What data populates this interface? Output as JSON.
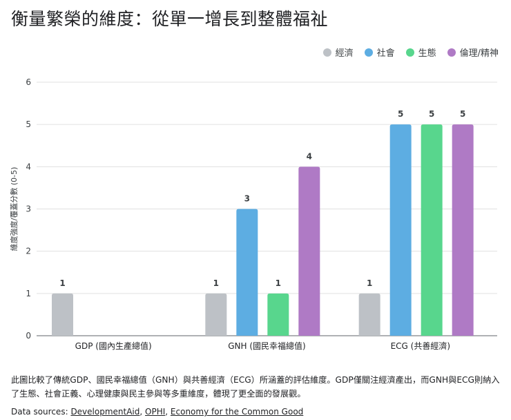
{
  "title": "衡量繁榮的維度：從單一增長到整體福祉",
  "chart_data": {
    "type": "bar",
    "categories": [
      "GDP (國內生產總值)",
      "GNH (國民幸福總值)",
      "ECG (共善經濟)"
    ],
    "series": [
      {
        "name": "經濟",
        "color": "#bdc1c6",
        "values": [
          1,
          1,
          1
        ]
      },
      {
        "name": "社會",
        "color": "#5dade2",
        "values": [
          null,
          3,
          5
        ]
      },
      {
        "name": "生態",
        "color": "#58d68d",
        "values": [
          null,
          1,
          5
        ]
      },
      {
        "name": "倫理/精神",
        "color": "#af7ac5",
        "values": [
          null,
          4,
          5
        ]
      }
    ],
    "ylabel": "維度強度/覆蓋分數 (0-5)",
    "ylim": [
      0,
      6
    ],
    "yticks": [
      0,
      1,
      2,
      3,
      4,
      5,
      6
    ],
    "legend_position": "top-right",
    "grid": true
  },
  "description": "此圖比較了傳統GDP、國民幸福總值（GNH）與共善經濟（ECG）所涵蓋的評估維度。GDP僅關注經濟產出，而GNH與ECG則納入了生態、社會正義、心理健康與民主參與等多重維度，體現了更全面的發展觀。",
  "sources": {
    "prefix": "Data sources: ",
    "links": [
      "DevelopmentAid",
      "OPHI",
      "Economy for the Common Good"
    ],
    "separator": ", "
  }
}
